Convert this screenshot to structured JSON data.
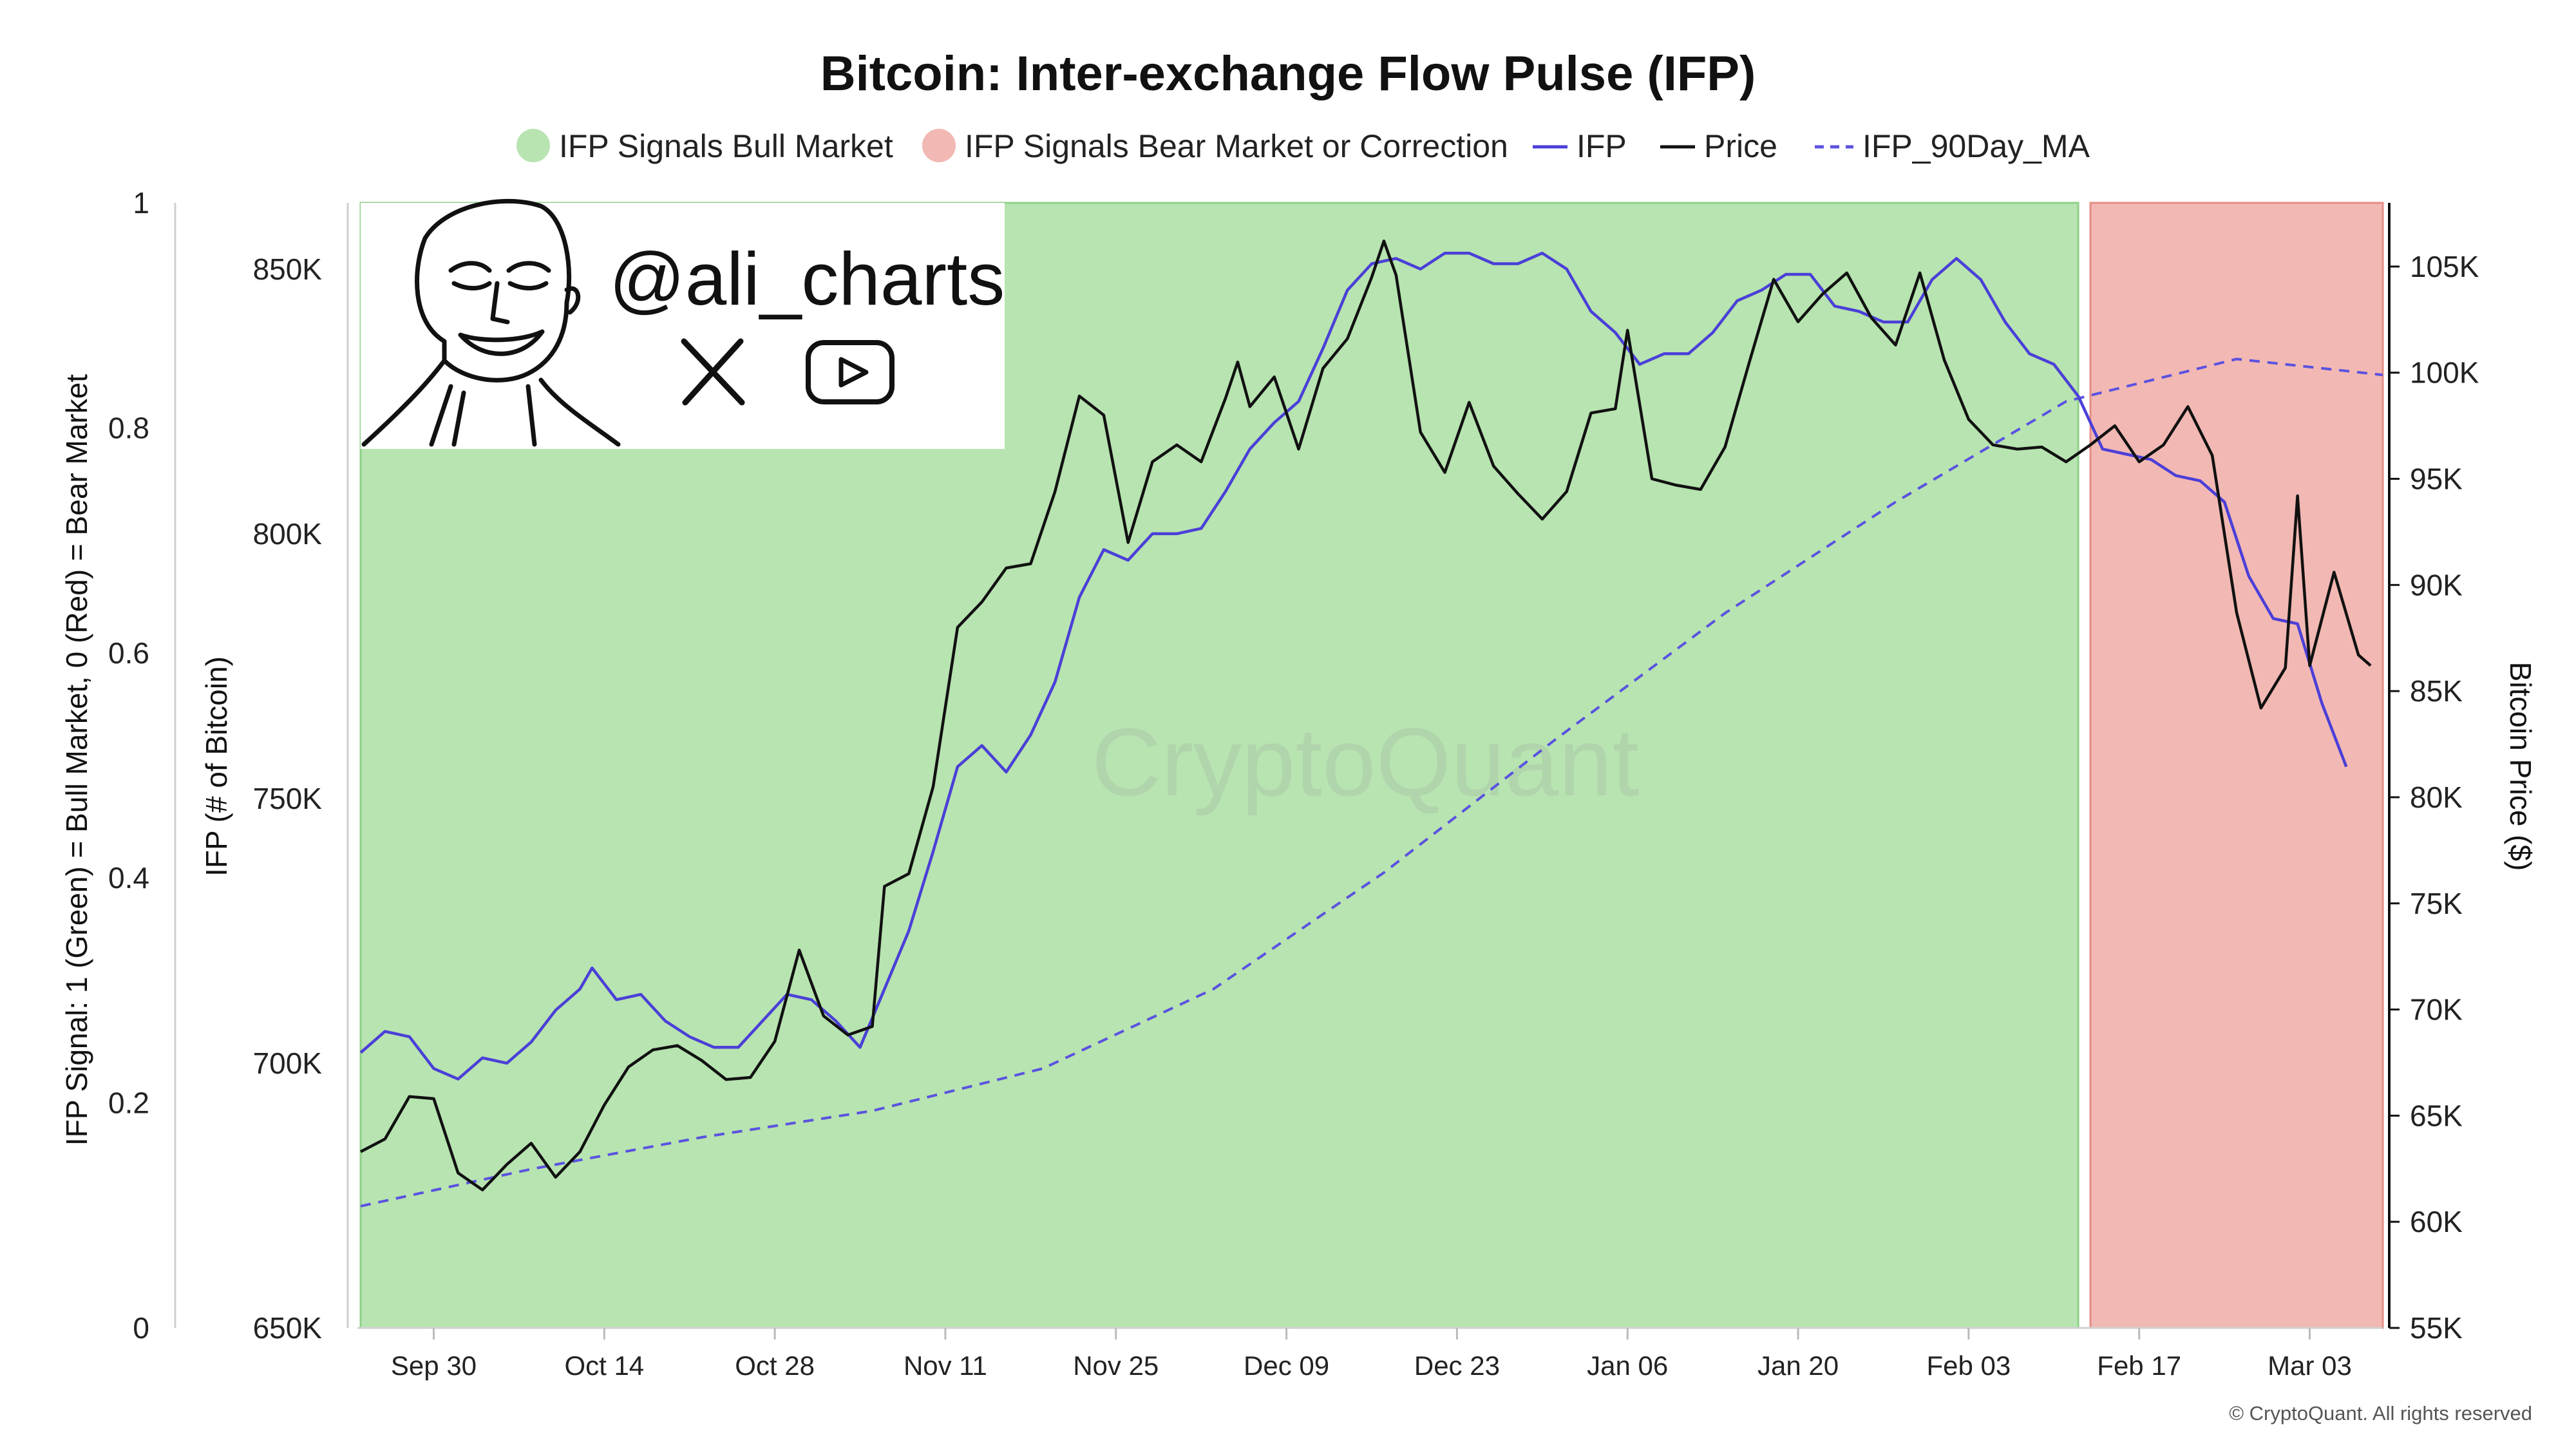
{
  "title": "Bitcoin: Inter-exchange Flow Pulse (IFP)",
  "legend": {
    "bull": {
      "label": "IFP Signals Bull Market",
      "color": "#b7e4b0"
    },
    "bear": {
      "label": "IFP Signals Bear Market or Correction",
      "color": "#f2b8b3"
    },
    "ifp": {
      "label": "IFP",
      "color": "#4b3fd8"
    },
    "price": {
      "label": "Price",
      "color": "#111111"
    },
    "ma": {
      "label": "IFP_90Day_MA",
      "color": "#5b52e0"
    }
  },
  "axes": {
    "left_signal_label": "IFP Signal: 1 (Green) = Bull Market, 0 (Red) = Bear Market",
    "left_ifp_label": "IFP (# of Bitcoin)",
    "right_label": "Bitcoin Price ($)",
    "signal_ticks": [
      "0",
      "0.2",
      "0.4",
      "0.6",
      "0.8",
      "1"
    ],
    "ifp_ticks": [
      "650K",
      "700K",
      "750K",
      "800K",
      "850K"
    ],
    "price_ticks": [
      "55K",
      "60K",
      "65K",
      "70K",
      "75K",
      "80K",
      "85K",
      "90K",
      "95K",
      "100K",
      "105K"
    ],
    "x_ticks": [
      "Sep 30",
      "Oct 14",
      "Oct 28",
      "Nov 11",
      "Nov 25",
      "Dec 09",
      "Dec 23",
      "Jan 06",
      "Jan 20",
      "Feb 03",
      "Feb 17",
      "Mar 03"
    ]
  },
  "watermark": "CryptoQuant",
  "credit": "© CryptoQuant. All rights reserved",
  "branding": {
    "handle": "@ali_charts",
    "icons": [
      "x-logo-icon",
      "youtube-icon"
    ]
  },
  "chart_data": {
    "type": "line",
    "title": "Bitcoin: Inter-exchange Flow Pulse (IFP)",
    "x_start": "2024-09-24",
    "x_end": "2025-03-09",
    "ifp_range": [
      650000,
      862500
    ],
    "price_range": [
      55000,
      108000
    ],
    "signal_range": [
      0,
      1
    ],
    "signal_regions": [
      {
        "start": "2024-09-24",
        "end": "2025-02-12",
        "signal": 1
      },
      {
        "start": "2025-02-13",
        "end": "2025-03-09",
        "signal": 0
      }
    ],
    "series": [
      {
        "name": "IFP",
        "axis": "ifp",
        "points": [
          [
            "2024-09-24",
            702000
          ],
          [
            "2024-09-26",
            706000
          ],
          [
            "2024-09-28",
            705000
          ],
          [
            "2024-09-30",
            699000
          ],
          [
            "2024-10-02",
            697000
          ],
          [
            "2024-10-04",
            701000
          ],
          [
            "2024-10-06",
            700000
          ],
          [
            "2024-10-08",
            704000
          ],
          [
            "2024-10-10",
            710000
          ],
          [
            "2024-10-12",
            714000
          ],
          [
            "2024-10-13",
            718000
          ],
          [
            "2024-10-15",
            712000
          ],
          [
            "2024-10-17",
            713000
          ],
          [
            "2024-10-19",
            708000
          ],
          [
            "2024-10-21",
            705000
          ],
          [
            "2024-10-23",
            703000
          ],
          [
            "2024-10-25",
            703000
          ],
          [
            "2024-10-27",
            708000
          ],
          [
            "2024-10-29",
            713000
          ],
          [
            "2024-10-31",
            712000
          ],
          [
            "2024-11-02",
            708000
          ],
          [
            "2024-11-04",
            703000
          ],
          [
            "2024-11-06",
            714000
          ],
          [
            "2024-11-08",
            725000
          ],
          [
            "2024-11-10",
            740000
          ],
          [
            "2024-11-12",
            756000
          ],
          [
            "2024-11-14",
            760000
          ],
          [
            "2024-11-16",
            755000
          ],
          [
            "2024-11-18",
            762000
          ],
          [
            "2024-11-20",
            772000
          ],
          [
            "2024-11-22",
            788000
          ],
          [
            "2024-11-24",
            797000
          ],
          [
            "2024-11-26",
            795000
          ],
          [
            "2024-11-28",
            800000
          ],
          [
            "2024-11-30",
            800000
          ],
          [
            "2024-12-02",
            801000
          ],
          [
            "2024-12-04",
            808000
          ],
          [
            "2024-12-06",
            816000
          ],
          [
            "2024-12-08",
            821000
          ],
          [
            "2024-12-10",
            825000
          ],
          [
            "2024-12-12",
            835000
          ],
          [
            "2024-12-14",
            846000
          ],
          [
            "2024-12-16",
            851000
          ],
          [
            "2024-12-18",
            852000
          ],
          [
            "2024-12-20",
            850000
          ],
          [
            "2024-12-22",
            853000
          ],
          [
            "2024-12-24",
            853000
          ],
          [
            "2024-12-26",
            851000
          ],
          [
            "2024-12-28",
            851000
          ],
          [
            "2024-12-30",
            853000
          ],
          [
            "2025-01-01",
            850000
          ],
          [
            "2025-01-03",
            842000
          ],
          [
            "2025-01-05",
            838000
          ],
          [
            "2025-01-07",
            832000
          ],
          [
            "2025-01-09",
            834000
          ],
          [
            "2025-01-11",
            834000
          ],
          [
            "2025-01-13",
            838000
          ],
          [
            "2025-01-15",
            844000
          ],
          [
            "2025-01-17",
            846000
          ],
          [
            "2025-01-19",
            849000
          ],
          [
            "2025-01-21",
            849000
          ],
          [
            "2025-01-23",
            843000
          ],
          [
            "2025-01-25",
            842000
          ],
          [
            "2025-01-27",
            840000
          ],
          [
            "2025-01-29",
            840000
          ],
          [
            "2025-01-31",
            848000
          ],
          [
            "2025-02-02",
            852000
          ],
          [
            "2025-02-04",
            848000
          ],
          [
            "2025-02-06",
            840000
          ],
          [
            "2025-02-08",
            834000
          ],
          [
            "2025-02-10",
            832000
          ],
          [
            "2025-02-12",
            826000
          ],
          [
            "2025-02-14",
            816000
          ],
          [
            "2025-02-16",
            815000
          ],
          [
            "2025-02-18",
            814000
          ],
          [
            "2025-02-20",
            811000
          ],
          [
            "2025-02-22",
            810000
          ],
          [
            "2025-02-24",
            806000
          ],
          [
            "2025-02-26",
            792000
          ],
          [
            "2025-02-28",
            784000
          ],
          [
            "2025-03-02",
            783000
          ],
          [
            "2025-03-04",
            768000
          ],
          [
            "2025-03-06",
            756000
          ]
        ]
      },
      {
        "name": "Price",
        "axis": "price",
        "points": [
          [
            "2024-09-24",
            63300
          ],
          [
            "2024-09-26",
            63900
          ],
          [
            "2024-09-28",
            65900
          ],
          [
            "2024-09-30",
            65800
          ],
          [
            "2024-10-02",
            62300
          ],
          [
            "2024-10-04",
            61500
          ],
          [
            "2024-10-06",
            62700
          ],
          [
            "2024-10-08",
            63700
          ],
          [
            "2024-10-10",
            62100
          ],
          [
            "2024-10-12",
            63300
          ],
          [
            "2024-10-14",
            65500
          ],
          [
            "2024-10-16",
            67300
          ],
          [
            "2024-10-18",
            68100
          ],
          [
            "2024-10-20",
            68300
          ],
          [
            "2024-10-22",
            67600
          ],
          [
            "2024-10-24",
            66700
          ],
          [
            "2024-10-26",
            66800
          ],
          [
            "2024-10-28",
            68500
          ],
          [
            "2024-10-30",
            72800
          ],
          [
            "2024-11-01",
            69700
          ],
          [
            "2024-11-03",
            68800
          ],
          [
            "2024-11-05",
            69200
          ],
          [
            "2024-11-06",
            75800
          ],
          [
            "2024-11-08",
            76400
          ],
          [
            "2024-11-10",
            80500
          ],
          [
            "2024-11-12",
            88000
          ],
          [
            "2024-11-14",
            89200
          ],
          [
            "2024-11-16",
            90800
          ],
          [
            "2024-11-18",
            91000
          ],
          [
            "2024-11-20",
            94400
          ],
          [
            "2024-11-22",
            98900
          ],
          [
            "2024-11-24",
            98000
          ],
          [
            "2024-11-26",
            92000
          ],
          [
            "2024-11-28",
            95800
          ],
          [
            "2024-11-30",
            96600
          ],
          [
            "2024-12-02",
            95800
          ],
          [
            "2024-12-04",
            98800
          ],
          [
            "2024-12-05",
            100500
          ],
          [
            "2024-12-06",
            98400
          ],
          [
            "2024-12-08",
            99800
          ],
          [
            "2024-12-10",
            96400
          ],
          [
            "2024-12-12",
            100200
          ],
          [
            "2024-12-14",
            101600
          ],
          [
            "2024-12-16",
            104500
          ],
          [
            "2024-12-17",
            106200
          ],
          [
            "2024-12-18",
            104600
          ],
          [
            "2024-12-20",
            97200
          ],
          [
            "2024-12-22",
            95300
          ],
          [
            "2024-12-24",
            98600
          ],
          [
            "2024-12-26",
            95600
          ],
          [
            "2024-12-28",
            94300
          ],
          [
            "2024-12-30",
            93100
          ],
          [
            "2025-01-01",
            94400
          ],
          [
            "2025-01-03",
            98100
          ],
          [
            "2025-01-05",
            98300
          ],
          [
            "2025-01-06",
            102000
          ],
          [
            "2025-01-08",
            95000
          ],
          [
            "2025-01-10",
            94700
          ],
          [
            "2025-01-12",
            94500
          ],
          [
            "2025-01-14",
            96500
          ],
          [
            "2025-01-16",
            100500
          ],
          [
            "2025-01-18",
            104400
          ],
          [
            "2025-01-20",
            102400
          ],
          [
            "2025-01-22",
            103700
          ],
          [
            "2025-01-24",
            104700
          ],
          [
            "2025-01-26",
            102600
          ],
          [
            "2025-01-28",
            101300
          ],
          [
            "2025-01-30",
            104700
          ],
          [
            "2025-02-01",
            100600
          ],
          [
            "2025-02-03",
            97800
          ],
          [
            "2025-02-05",
            96600
          ],
          [
            "2025-02-07",
            96400
          ],
          [
            "2025-02-09",
            96500
          ],
          [
            "2025-02-11",
            95800
          ],
          [
            "2025-02-13",
            96600
          ],
          [
            "2025-02-15",
            97500
          ],
          [
            "2025-02-17",
            95800
          ],
          [
            "2025-02-19",
            96600
          ],
          [
            "2025-02-21",
            98400
          ],
          [
            "2025-02-23",
            96100
          ],
          [
            "2025-02-25",
            88700
          ],
          [
            "2025-02-27",
            84200
          ],
          [
            "2025-03-01",
            86100
          ],
          [
            "2025-03-02",
            94200
          ],
          [
            "2025-03-03",
            86200
          ],
          [
            "2025-03-05",
            90600
          ],
          [
            "2025-03-07",
            86700
          ],
          [
            "2025-03-08",
            86200
          ]
        ]
      },
      {
        "name": "IFP_90Day_MA",
        "axis": "ifp",
        "points": [
          [
            "2024-09-24",
            673000
          ],
          [
            "2024-10-08",
            680000
          ],
          [
            "2024-10-22",
            686000
          ],
          [
            "2024-11-05",
            691000
          ],
          [
            "2024-11-19",
            699000
          ],
          [
            "2024-12-03",
            714000
          ],
          [
            "2024-12-17",
            736000
          ],
          [
            "2024-12-31",
            761000
          ],
          [
            "2025-01-14",
            785000
          ],
          [
            "2025-01-28",
            806000
          ],
          [
            "2025-02-11",
            825000
          ],
          [
            "2025-02-25",
            833000
          ],
          [
            "2025-03-09",
            830000
          ]
        ]
      }
    ]
  }
}
